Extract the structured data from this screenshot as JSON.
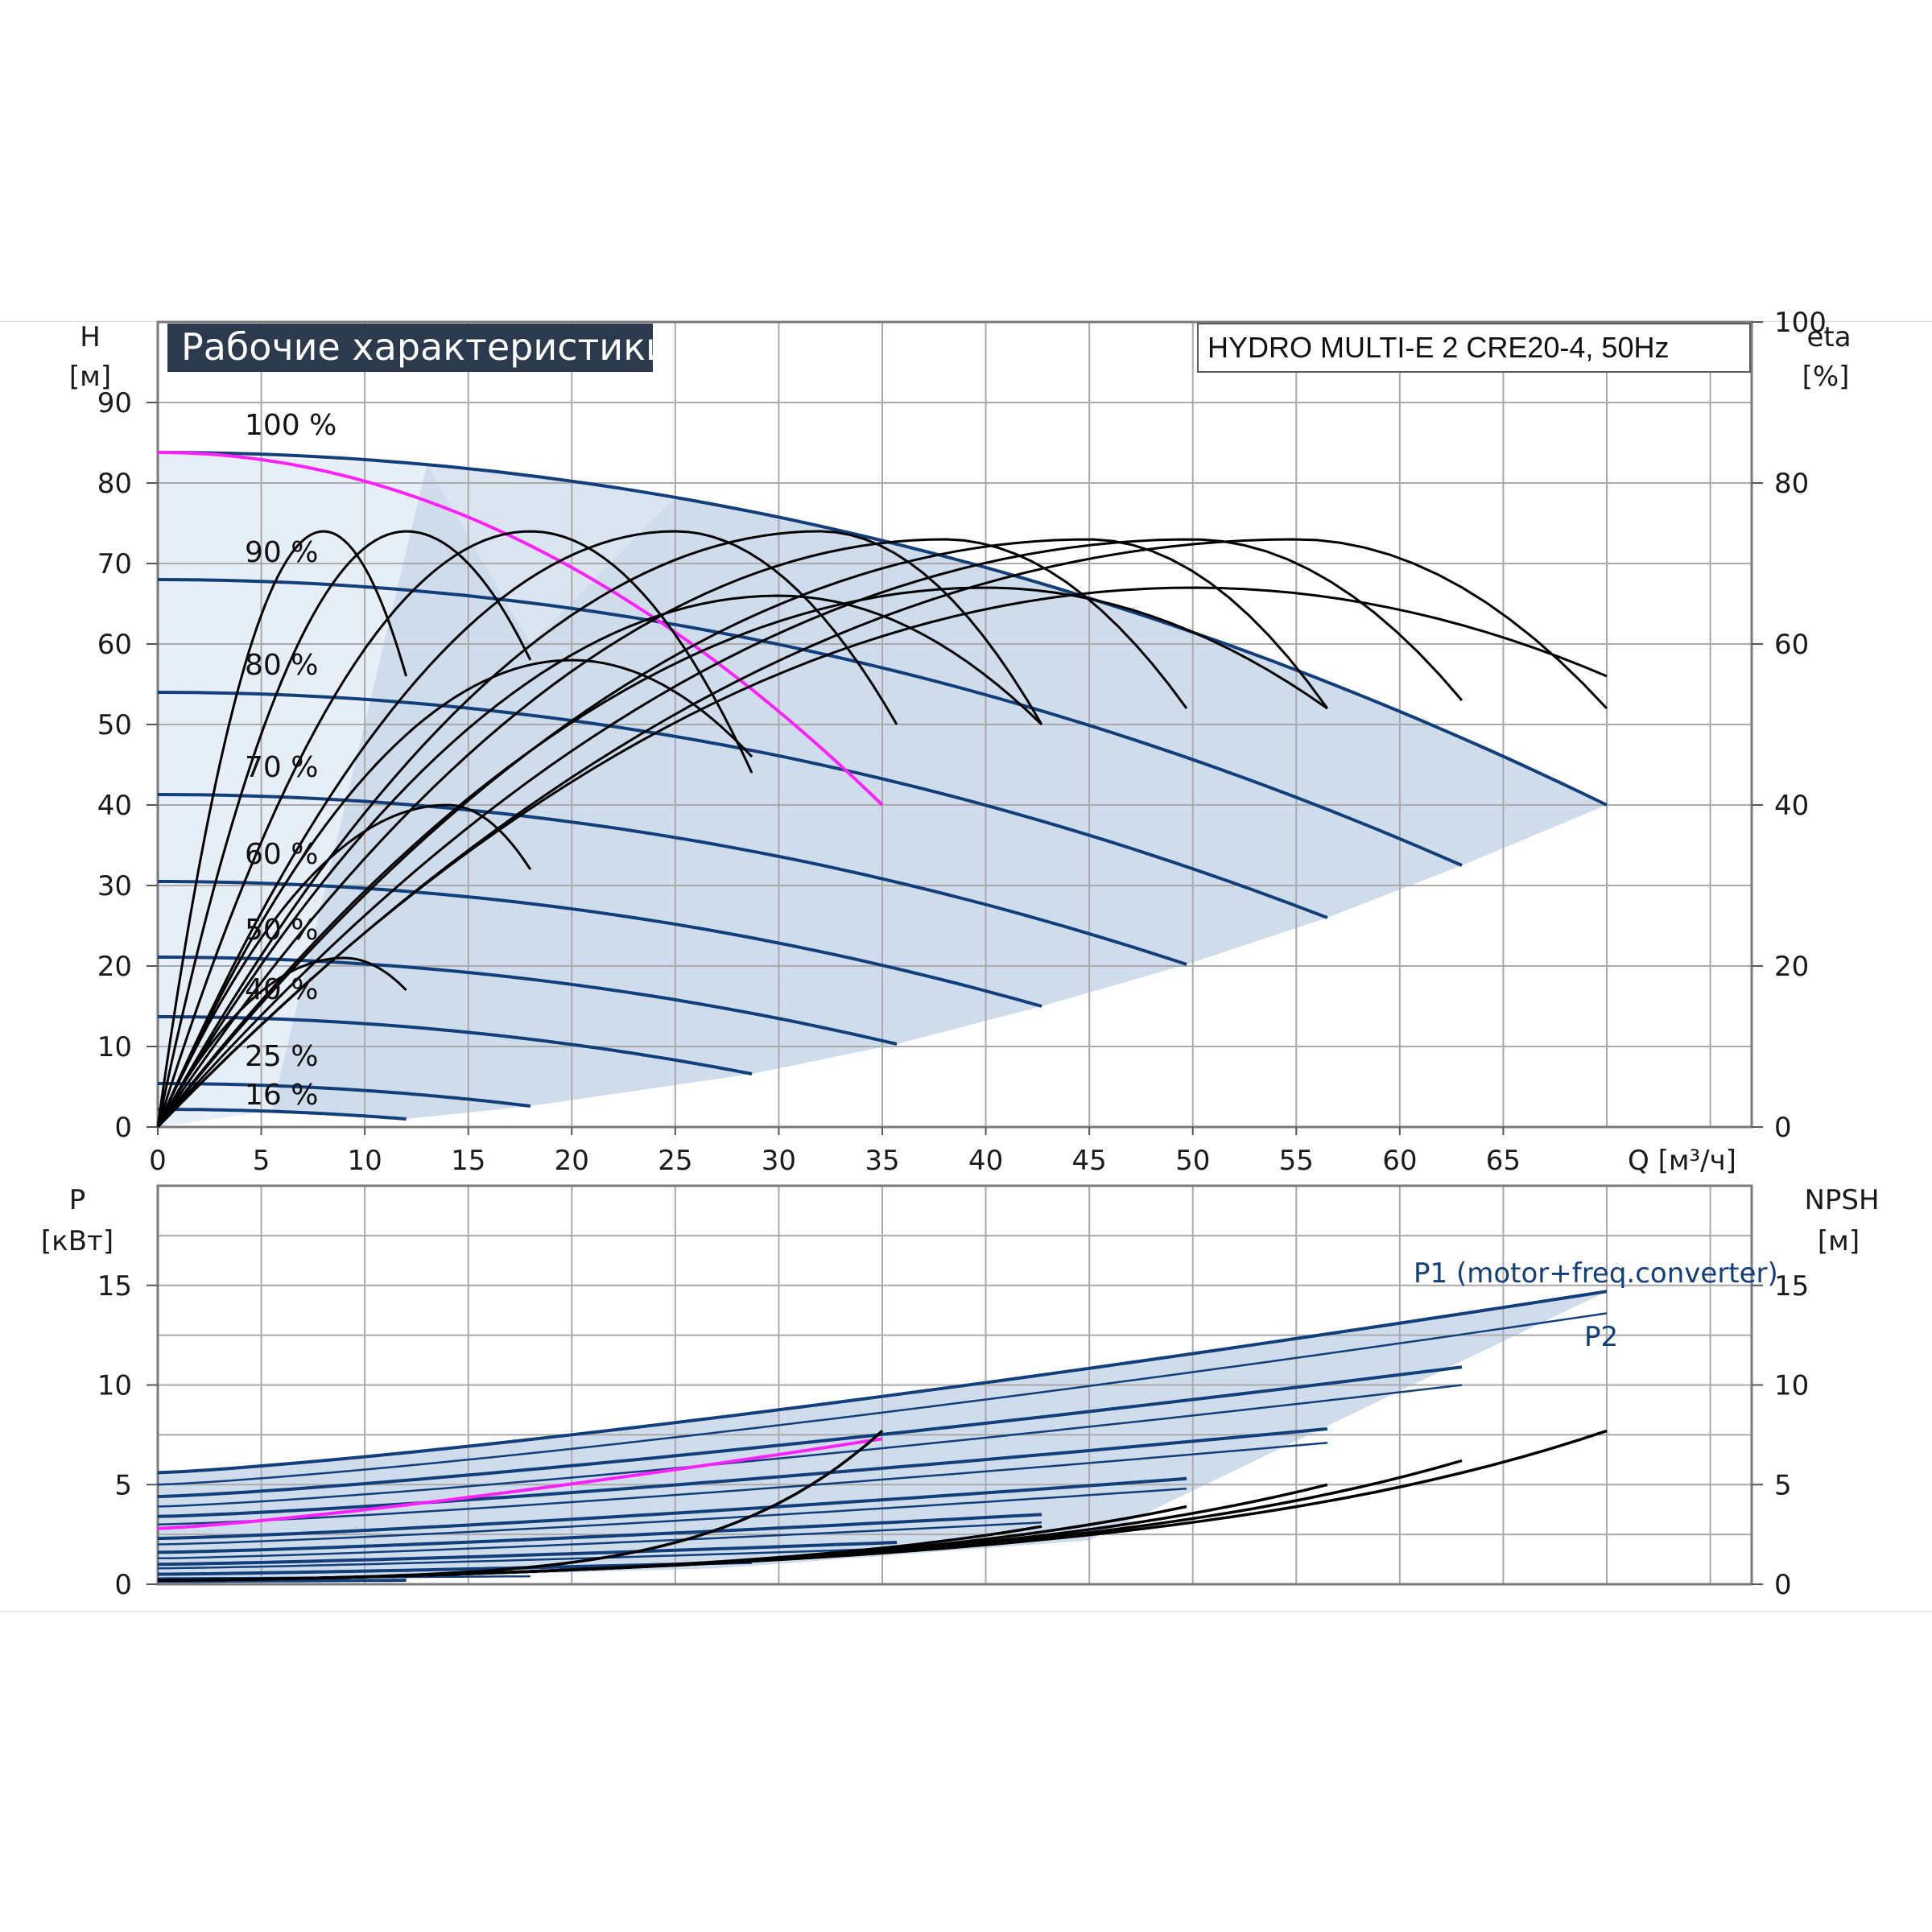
{
  "chart_data": [
    {
      "type": "line",
      "panel": "head",
      "title": "Рабочие характеристики",
      "model": "HYDRO MULTI-E 2 CRE20-4, 50Hz",
      "ylabel": "H",
      "yunit": "[м]",
      "y2label": "eta",
      "y2unit": "[%]",
      "xlabel": "Q [м³/ч]",
      "xlim": [
        0,
        77
      ],
      "ylim": [
        0,
        100
      ],
      "x_ticks": [
        "0",
        "5",
        "10",
        "15",
        "20",
        "25",
        "30",
        "35",
        "40",
        "45",
        "50",
        "55",
        "60",
        "65"
      ],
      "y_ticks": [
        "0",
        "10",
        "20",
        "30",
        "40",
        "50",
        "60",
        "70",
        "80",
        "90"
      ],
      "y2_ticks": [
        "0",
        "20",
        "40",
        "60",
        "80",
        "100"
      ],
      "y2_lim": [
        0,
        100
      ],
      "grid": true,
      "colors": {
        "curve": "#123e7a",
        "single_pump": "#ff22ff",
        "eta": "#000000",
        "area": "#cfdceb",
        "area_light": "#e6eef7"
      },
      "speed_curves": [
        {
          "name": "100 %",
          "h0": 83.8,
          "qmax": 70,
          "hend": 40
        },
        {
          "name": "90 %",
          "h0": 68.0,
          "qmax": 63,
          "hend": 32.5
        },
        {
          "name": "80 %",
          "h0": 54.0,
          "qmax": 56.5,
          "hend": 26
        },
        {
          "name": "70 %",
          "h0": 41.3,
          "qmax": 49.7,
          "hend": 20.2
        },
        {
          "name": "60 %",
          "h0": 30.5,
          "qmax": 42.7,
          "hend": 15
        },
        {
          "name": "50 %",
          "h0": 21.1,
          "qmax": 35.7,
          "hend": 10.3
        },
        {
          "name": "40 %",
          "h0": 13.7,
          "qmax": 28.7,
          "hend": 6.6
        },
        {
          "name": "25 %",
          "h0": 5.4,
          "qmax": 18,
          "hend": 2.6
        },
        {
          "name": "16 %",
          "h0": 2.2,
          "qmax": 12,
          "hend": 1.0
        }
      ],
      "single_pump_curve": {
        "h0": 83.8,
        "qmax": 35,
        "hend": 40
      },
      "eta_curves": [
        {
          "qpeak": 8,
          "etapeak": 74,
          "qend": 12,
          "etaend": 56
        },
        {
          "qpeak": 12,
          "etapeak": 74,
          "qend": 18,
          "etaend": 58
        },
        {
          "qpeak": 18,
          "etapeak": 74,
          "qend": 28.7,
          "etaend": 44
        },
        {
          "qpeak": 25,
          "etapeak": 74,
          "qend": 35.7,
          "etaend": 50
        },
        {
          "qpeak": 32,
          "etapeak": 74,
          "qend": 42.7,
          "etaend": 50
        },
        {
          "qpeak": 38,
          "etapeak": 73,
          "qend": 49.7,
          "etaend": 52
        },
        {
          "qpeak": 45,
          "etapeak": 73,
          "qend": 56.5,
          "etaend": 52
        },
        {
          "qpeak": 50,
          "etapeak": 73,
          "qend": 63,
          "etaend": 53
        },
        {
          "qpeak": 55,
          "etapeak": 73,
          "qend": 70,
          "etaend": 52
        },
        {
          "qpeak": 9,
          "etapeak": 21,
          "qend": 12,
          "etaend": 17
        },
        {
          "qpeak": 14,
          "etapeak": 40,
          "qend": 18,
          "etaend": 32
        },
        {
          "qpeak": 20,
          "etapeak": 58,
          "qend": 28.7,
          "etaend": 46
        },
        {
          "qpeak": 30,
          "etapeak": 66,
          "qend": 42.7,
          "etaend": 50
        },
        {
          "qpeak": 40,
          "etapeak": 67,
          "qend": 56.5,
          "etaend": 52
        },
        {
          "qpeak": 50,
          "etapeak": 67,
          "qend": 70,
          "etaend": 56
        }
      ]
    },
    {
      "type": "line",
      "panel": "power",
      "ylabel": "P",
      "yunit": "[кВт]",
      "y2label": "NPSH",
      "y2unit": "[м]",
      "xlim": [
        0,
        77
      ],
      "ylim": [
        0,
        20
      ],
      "y_ticks": [
        "0",
        "5",
        "10",
        "15"
      ],
      "y2_ticks": [
        "0",
        "5",
        "10",
        "15"
      ],
      "y2_lim": [
        0,
        20
      ],
      "grid": true,
      "labels": {
        "p1": "P1 (motor+freq.converter)",
        "p2": "P2"
      },
      "power_curves": [
        {
          "p0": 5.6,
          "qmax": 70,
          "pend": 14.7
        },
        {
          "p0": 5.0,
          "qmax": 70,
          "pend": 13.6
        },
        {
          "p0": 4.4,
          "qmax": 63,
          "pend": 10.9
        },
        {
          "p0": 3.9,
          "qmax": 63,
          "pend": 10.0
        },
        {
          "p0": 3.4,
          "qmax": 56.5,
          "pend": 7.8
        },
        {
          "p0": 3.0,
          "qmax": 56.5,
          "pend": 7.1
        },
        {
          "p0": 2.3,
          "qmax": 49.7,
          "pend": 5.3
        },
        {
          "p0": 2.0,
          "qmax": 49.7,
          "pend": 4.8
        },
        {
          "p0": 1.6,
          "qmax": 42.7,
          "pend": 3.5
        },
        {
          "p0": 1.3,
          "qmax": 42.7,
          "pend": 3.1
        },
        {
          "p0": 1.0,
          "qmax": 35.7,
          "pend": 2.1
        },
        {
          "p0": 0.8,
          "qmax": 35.7,
          "pend": 1.8
        },
        {
          "p0": 0.5,
          "qmax": 28.7,
          "pend": 1.1
        },
        {
          "p0": 0.3,
          "qmax": 18,
          "pend": 0.4
        },
        {
          "p0": 0.15,
          "qmax": 12,
          "pend": 0.2
        }
      ],
      "single_pump_power": {
        "p0": 2.8,
        "qmax": 35,
        "pend": 7.3
      },
      "npsh_curves": [
        {
          "qmax": 35,
          "nend": 7.7
        },
        {
          "qmax": 42.7,
          "nend": 2.9
        },
        {
          "qmax": 49.7,
          "nend": 3.9
        },
        {
          "qmax": 56.5,
          "nend": 5.0
        },
        {
          "qmax": 63,
          "nend": 6.2
        },
        {
          "qmax": 70,
          "nend": 7.7
        }
      ]
    }
  ]
}
